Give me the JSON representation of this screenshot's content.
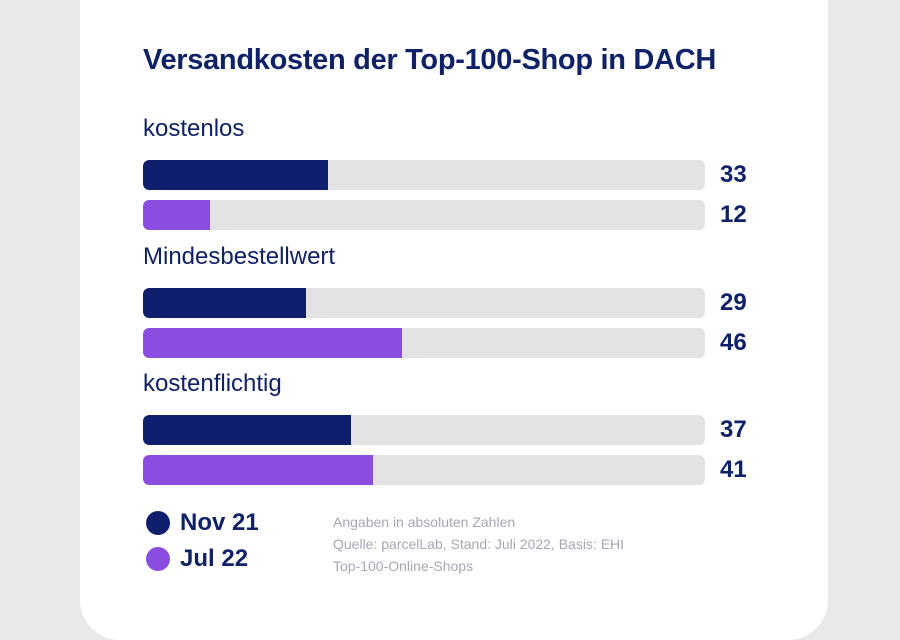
{
  "chart_data": {
    "type": "bar",
    "orientation": "horizontal",
    "title": "Versandkosten der Top-100-Shop in DACH",
    "categories": [
      "kostenlos",
      "Mindesbestellwert",
      "kostenflichtig"
    ],
    "series": [
      {
        "name": "Nov 21",
        "color": "#0f1f6e",
        "values": [
          33,
          29,
          37
        ]
      },
      {
        "name": "Jul 22",
        "color": "#8a4ddf",
        "values": [
          12,
          46,
          41
        ]
      }
    ],
    "xlim": [
      0,
      100
    ],
    "grid": false,
    "legend_placement": "bottom-left"
  },
  "notes": [
    "Angaben in absoluten Zahlen",
    "Quelle: parcelLab, Stand: Juli 2022, Basis: EHI",
    "Top-100-Online-Shops"
  ],
  "colors": {
    "text": "#0f2167",
    "track": "#e3e3e6",
    "note": "#a4a8b6"
  }
}
